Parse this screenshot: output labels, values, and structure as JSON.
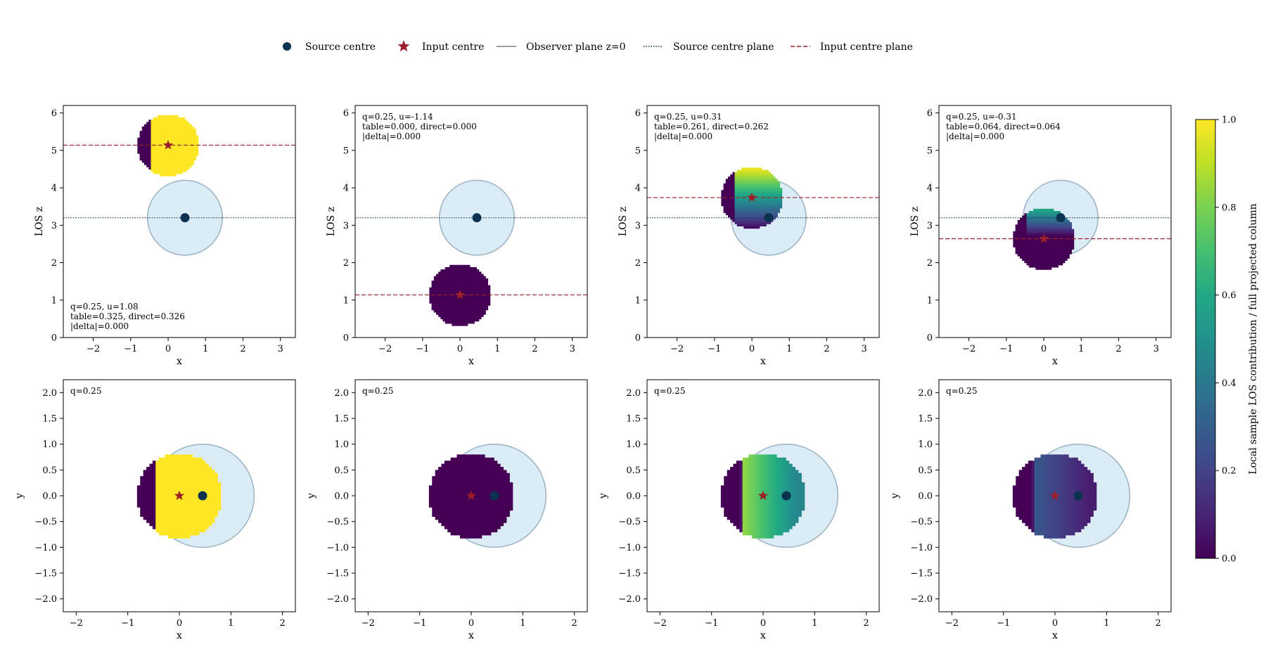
{
  "legend": {
    "entries": [
      {
        "label": "Source centre",
        "marker": "circle",
        "color": "#0b3350"
      },
      {
        "label": "Input centre",
        "marker": "star",
        "color": "#9b1f28"
      },
      {
        "label": "Observer plane z=0",
        "marker": "solid-line",
        "color": "#808080"
      },
      {
        "label": "Source centre plane",
        "marker": "dotted-line",
        "color": "#0b3350"
      },
      {
        "label": "Input centre plane",
        "marker": "dashed-line",
        "color": "#9b1f28"
      }
    ]
  },
  "colorbar": {
    "label": "Local sample LOS contribution / full projected column",
    "ticks": [
      "0.0",
      "0.2",
      "0.4",
      "0.6",
      "0.8",
      "1.0"
    ],
    "range": [
      0,
      1
    ],
    "colormap": "viridis"
  },
  "chart_data": [
    {
      "type": "scatter",
      "panel": "top-1",
      "xlabel": "x",
      "ylabel": "LOS z",
      "xlim": [
        -2.8,
        3.4
      ],
      "ylim": [
        0,
        6.2
      ],
      "xticks": [
        "−2",
        "−1",
        "0",
        "1",
        "2",
        "3"
      ],
      "yticks": [
        "0",
        "1",
        "2",
        "3",
        "4",
        "5",
        "6"
      ],
      "source_centre": {
        "x": 0.45,
        "z": 3.2
      },
      "source_radius": 1.0,
      "input_centre": {
        "x": 0.0,
        "z": 5.14
      },
      "input_radius": 0.82,
      "shading": {
        "colormap": "viridis",
        "mode": "const",
        "value": 1.0
      },
      "annotation": {
        "lines": [
          "q=0.25, u=1.08",
          "table=0.325, direct=0.326",
          "|delta|=0.000"
        ],
        "position": "bottom-left"
      }
    },
    {
      "type": "scatter",
      "panel": "top-2",
      "xlabel": "x",
      "ylabel": "LOS z",
      "xlim": [
        -2.8,
        3.4
      ],
      "ylim": [
        0,
        6.2
      ],
      "xticks": [
        "−2",
        "−1",
        "0",
        "1",
        "2",
        "3"
      ],
      "yticks": [
        "0",
        "1",
        "2",
        "3",
        "4",
        "5",
        "6"
      ],
      "source_centre": {
        "x": 0.45,
        "z": 3.2
      },
      "source_radius": 1.0,
      "input_centre": {
        "x": 0.0,
        "z": 1.14
      },
      "input_radius": 0.82,
      "shading": {
        "colormap": "viridis",
        "mode": "const",
        "value": 0.0
      },
      "annotation": {
        "lines": [
          "q=0.25, u=-1.14",
          "table=0.000, direct=0.000",
          "|delta|=0.000"
        ],
        "position": "top-left"
      }
    },
    {
      "type": "scatter",
      "panel": "top-3",
      "xlabel": "x",
      "ylabel": "LOS z",
      "xlim": [
        -2.8,
        3.4
      ],
      "ylim": [
        0,
        6.2
      ],
      "xticks": [
        "−2",
        "−1",
        "0",
        "1",
        "2",
        "3"
      ],
      "yticks": [
        "0",
        "1",
        "2",
        "3",
        "4",
        "5",
        "6"
      ],
      "source_centre": {
        "x": 0.45,
        "z": 3.2
      },
      "source_radius": 1.0,
      "input_centre": {
        "x": 0.0,
        "z": 3.74
      },
      "input_radius": 0.82,
      "shading": {
        "colormap": "viridis",
        "mode": "depth",
        "value": 0.26
      },
      "annotation": {
        "lines": [
          "q=0.25, u=0.31",
          "table=0.261, direct=0.262",
          "|delta|=0.000"
        ],
        "position": "top-left"
      }
    },
    {
      "type": "scatter",
      "panel": "top-4",
      "xlabel": "x",
      "ylabel": "LOS z",
      "xlim": [
        -2.8,
        3.4
      ],
      "ylim": [
        0,
        6.2
      ],
      "xticks": [
        "−2",
        "−1",
        "0",
        "1",
        "2",
        "3"
      ],
      "yticks": [
        "0",
        "1",
        "2",
        "3",
        "4",
        "5",
        "6"
      ],
      "source_centre": {
        "x": 0.45,
        "z": 3.2
      },
      "source_radius": 1.0,
      "input_centre": {
        "x": 0.0,
        "z": 2.64
      },
      "input_radius": 0.82,
      "shading": {
        "colormap": "viridis",
        "mode": "depth",
        "value": 0.06
      },
      "annotation": {
        "lines": [
          "q=0.25, u=-0.31",
          "table=0.064, direct=0.064",
          "|delta|=0.000"
        ],
        "position": "top-left"
      }
    },
    {
      "type": "scatter",
      "panel": "bottom-1",
      "xlabel": "x",
      "ylabel": "y",
      "xlim": [
        -2.25,
        2.25
      ],
      "ylim": [
        -2.25,
        2.25
      ],
      "xticks": [
        "−2",
        "−1",
        "0",
        "1",
        "2"
      ],
      "yticks": [
        "−2.0",
        "−1.5",
        "−1.0",
        "−0.5",
        "0.0",
        "0.5",
        "1.0",
        "1.5",
        "2.0"
      ],
      "source_centre": {
        "x": 0.45,
        "y": 0.0
      },
      "source_radius": 1.0,
      "input_centre": {
        "x": 0.0,
        "y": 0.0
      },
      "input_radius": 0.82,
      "shading": {
        "colormap": "viridis",
        "mode": "const",
        "value": 1.0
      },
      "annotation": {
        "lines": [
          "q=0.25"
        ],
        "position": "top-left"
      }
    },
    {
      "type": "scatter",
      "panel": "bottom-2",
      "xlabel": "x",
      "ylabel": "y",
      "xlim": [
        -2.25,
        2.25
      ],
      "ylim": [
        -2.25,
        2.25
      ],
      "xticks": [
        "−2",
        "−1",
        "0",
        "1",
        "2"
      ],
      "yticks": [
        "−2.0",
        "−1.5",
        "−1.0",
        "−0.5",
        "0.0",
        "0.5",
        "1.0",
        "1.5",
        "2.0"
      ],
      "source_centre": {
        "x": 0.45,
        "y": 0.0
      },
      "source_radius": 1.0,
      "input_centre": {
        "x": 0.0,
        "y": 0.0
      },
      "input_radius": 0.82,
      "shading": {
        "colormap": "viridis",
        "mode": "const",
        "value": 0.0
      },
      "annotation": {
        "lines": [
          "q=0.25"
        ],
        "position": "top-left"
      }
    },
    {
      "type": "scatter",
      "panel": "bottom-3",
      "xlabel": "x",
      "ylabel": "y",
      "xlim": [
        -2.25,
        2.25
      ],
      "ylim": [
        -2.25,
        2.25
      ],
      "xticks": [
        "−2",
        "−1",
        "0",
        "1",
        "2"
      ],
      "yticks": [
        "−2.0",
        "−1.5",
        "−1.0",
        "−0.5",
        "0.0",
        "0.5",
        "1.0",
        "1.5",
        "2.0"
      ],
      "source_centre": {
        "x": 0.45,
        "y": 0.0
      },
      "source_radius": 1.0,
      "input_centre": {
        "x": 0.0,
        "y": 0.0
      },
      "input_radius": 0.82,
      "shading": {
        "colormap": "viridis",
        "mode": "radial",
        "value": 0.6
      },
      "annotation": {
        "lines": [
          "q=0.25"
        ],
        "position": "top-left"
      }
    },
    {
      "type": "scatter",
      "panel": "bottom-4",
      "xlabel": "x",
      "ylabel": "y",
      "xlim": [
        -2.25,
        2.25
      ],
      "ylim": [
        -2.25,
        2.25
      ],
      "xticks": [
        "−2",
        "−1",
        "0",
        "1",
        "2"
      ],
      "yticks": [
        "−2.0",
        "−1.5",
        "−1.0",
        "−0.5",
        "0.0",
        "0.5",
        "1.0",
        "1.5",
        "2.0"
      ],
      "source_centre": {
        "x": 0.45,
        "y": 0.0
      },
      "source_radius": 1.0,
      "input_centre": {
        "x": 0.0,
        "y": 0.0
      },
      "input_radius": 0.82,
      "shading": {
        "colormap": "viridis",
        "mode": "radial",
        "value": 0.2
      },
      "annotation": {
        "lines": [
          "q=0.25"
        ],
        "position": "top-left"
      }
    }
  ]
}
